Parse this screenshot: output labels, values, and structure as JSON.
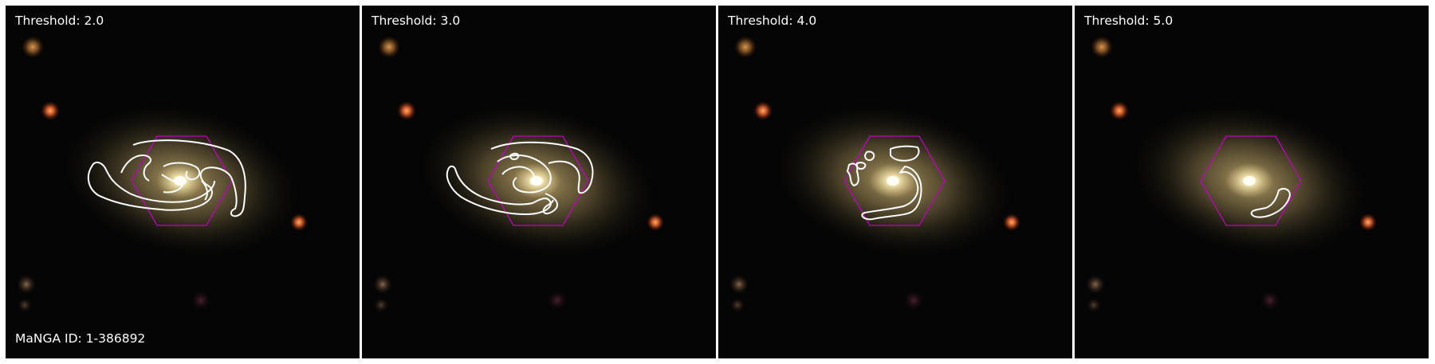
{
  "galaxy": {
    "manga_id_label": "MaNGA ID: 1-386892"
  },
  "panels": [
    {
      "threshold_label": "Threshold: 2.0"
    },
    {
      "threshold_label": "Threshold: 3.0"
    },
    {
      "threshold_label": "Threshold: 4.0"
    },
    {
      "threshold_label": "Threshold: 5.0"
    }
  ],
  "colors": {
    "contour": "#ffffff",
    "ifu_hexagon": "#c000c0",
    "background": "#050505",
    "galaxy_core": "#fffde0",
    "galaxy_disk": "#c9b27a",
    "foreground_stars": "#e8622a"
  }
}
